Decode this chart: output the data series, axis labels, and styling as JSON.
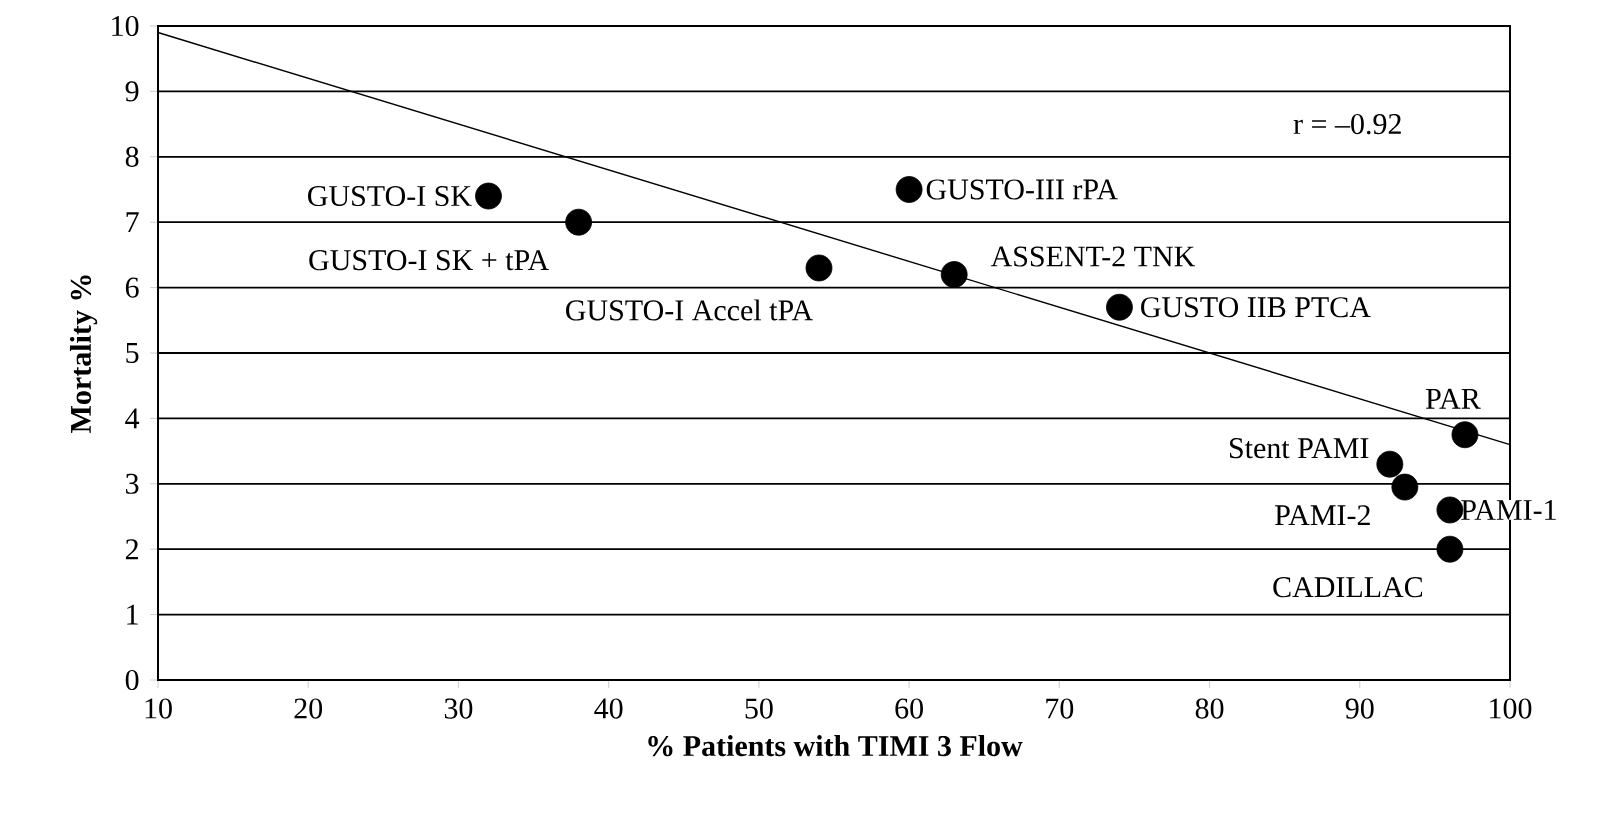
{
  "chart_data": {
    "type": "scatter",
    "xlabel": "% Patients with TIMI 3 Flow",
    "ylabel": "Mortality %",
    "xlim": [
      10,
      100
    ],
    "ylim": [
      0,
      10
    ],
    "xticks": [
      10,
      20,
      30,
      40,
      50,
      60,
      70,
      80,
      90,
      100
    ],
    "yticks": [
      0,
      1,
      2,
      3,
      4,
      5,
      6,
      7,
      8,
      9,
      10
    ],
    "grid": "y",
    "marker": "circle",
    "series": [
      {
        "color": "#000000",
        "x": [
          32,
          38,
          54,
          60,
          63,
          74,
          97,
          92,
          93,
          96,
          96
        ],
        "values": [
          7.4,
          7.0,
          6.3,
          7.5,
          6.2,
          5.7,
          3.75,
          3.3,
          2.95,
          2.6,
          2.0
        ]
      },
      {
        "type": "line",
        "color": "#000000",
        "marker": "none",
        "line_style": "solid",
        "x": [
          10,
          100
        ],
        "values": [
          9.9,
          3.6
        ]
      }
    ],
    "annotations": [
      {
        "text": "GUSTO-I SK",
        "x": 32,
        "y": 7.4
      },
      {
        "text": "GUSTO-I SK + tPA",
        "x": 38,
        "y": 7.0
      },
      {
        "text": "GUSTO-I Accel tPA",
        "x": 54,
        "y": 6.3
      },
      {
        "text": "GUSTO-III  rPA",
        "x": 60,
        "y": 7.5
      },
      {
        "text": "ASSENT-2 TNK",
        "x": 63,
        "y": 6.2
      },
      {
        "text": "GUSTO IIB PTCA",
        "x": 74,
        "y": 5.7
      },
      {
        "text": "PAR",
        "x": 97,
        "y": 3.75
      },
      {
        "text": "Stent PAMI",
        "x": 92,
        "y": 3.3
      },
      {
        "text": "PAMI-2",
        "x": 93,
        "y": 2.95
      },
      {
        "text": "PAMI-1",
        "x": 96,
        "y": 2.6
      },
      {
        "text": "CADILLAC",
        "x": 96,
        "y": 2.0
      },
      "r = –0.92"
    ]
  }
}
